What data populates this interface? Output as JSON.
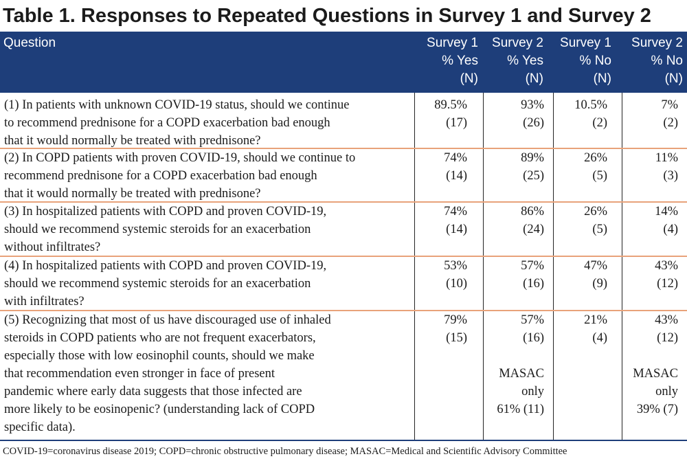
{
  "title": "Table 1. Responses to Repeated Questions in Survey 1 and Survey 2",
  "columns": [
    "Question",
    "Survey 1\n% Yes\n(N)",
    "Survey 2\n% Yes\n(N)",
    "Survey 1\n% No\n(N)",
    "Survey 2\n% No\n(N)"
  ],
  "rows": [
    {
      "question": "(1) In patients with unknown COVID-19 status, should we continue\n      to recommend prednisone for a COPD exacerbation bad enough\n      that it would normally be treated with prednisone?",
      "s1_yes": "89.5%\n(17)",
      "s2_yes": "93%\n(26)",
      "s1_no": "10.5%\n(2)",
      "s2_no": "7%\n(2)"
    },
    {
      "question": "(2) In COPD patients with proven COVID-19, should we continue to\n      recommend prednisone for a COPD exacerbation bad enough\n      that it would normally be treated with prednisone?",
      "s1_yes": "74%\n(14)",
      "s2_yes": "89%\n(25)",
      "s1_no": "26%\n(5)",
      "s2_no": "11%\n(3)"
    },
    {
      "question": "(3) In hospitalized patients with COPD and proven COVID-19,\n      should we recommend systemic steroids for an exacerbation\n      without infiltrates?",
      "s1_yes": "74%\n(14)",
      "s2_yes": "86%\n(24)",
      "s1_no": "26%\n(5)",
      "s2_no": "14%\n(4)"
    },
    {
      "question": "(4) In hospitalized patients with COPD and proven COVID-19,\n      should we recommend systemic steroids for an exacerbation\n      with infiltrates?",
      "s1_yes": "53%\n(10)",
      "s2_yes": "57%\n(16)",
      "s1_no": "47%\n(9)",
      "s2_no": "43%\n(12)"
    },
    {
      "question": "(5) Recognizing that most of us have discouraged use of inhaled\n      steroids in COPD patients who are not frequent exacerbators,\n      especially those with low eosinophil counts, should we make\n      that recommendation even stronger in face of present\n      pandemic where early data suggests that those infected are\n      more likely to be eosinopenic? (understanding lack of COPD\n      specific data).",
      "s1_yes": "79%\n(15)",
      "s2_yes": "57%\n(16)\n\nMASAC\nonly\n61%  (11)",
      "s1_no": "21%\n(4)",
      "s2_no": "43%\n(12)\n\nMASAC\nonly\n39% (7)"
    }
  ],
  "footnote": "COVID-19=coronavirus disease 2019; COPD=chronic obstructive pulmonary disease; MASAC=Medical and Scientific Advisory Committee"
}
